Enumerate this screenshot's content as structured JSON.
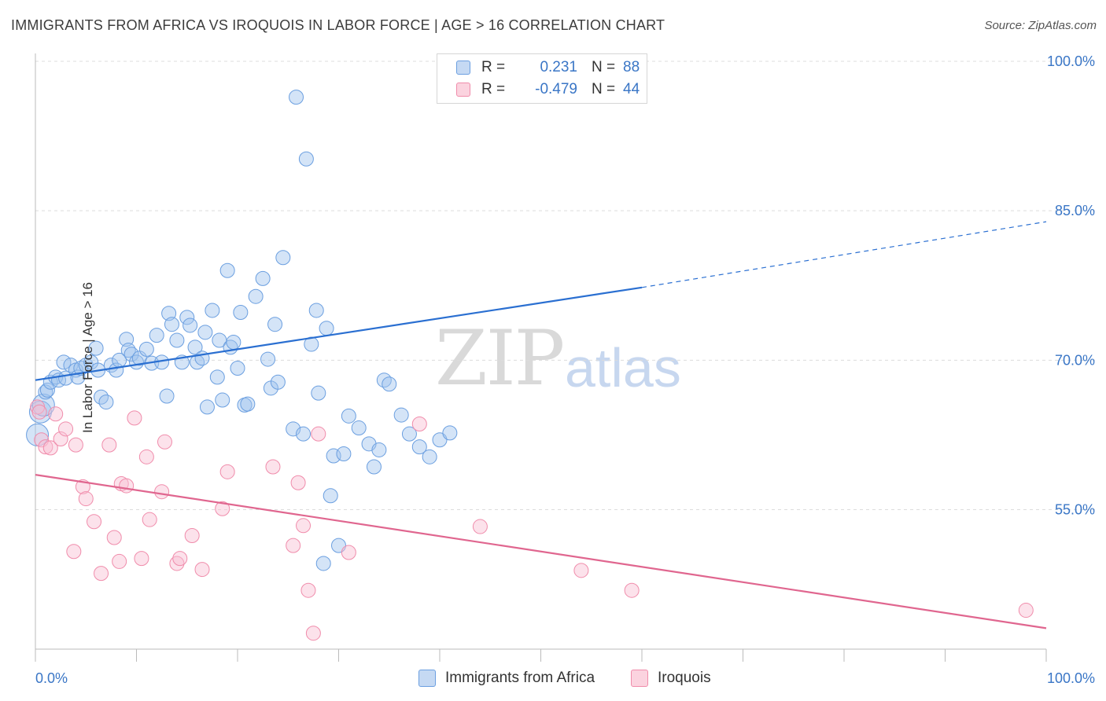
{
  "title": "IMMIGRANTS FROM AFRICA VS IROQUOIS IN LABOR FORCE | AGE > 16 CORRELATION CHART",
  "source": "Source: ZipAtlas.com",
  "watermark": {
    "zip": "ZIP",
    "atlas": "atlas"
  },
  "legend": {
    "r_label": "R =",
    "n_label": "N =",
    "series1": {
      "r": "0.231",
      "n": "88"
    },
    "series2": {
      "r": "-0.479",
      "n": "44"
    }
  },
  "bottom_legend": {
    "series1": "Immigrants from Africa",
    "series2": "Iroquois"
  },
  "colors": {
    "blue": "#6b9fe0",
    "blue_line": "#2a6fd1",
    "pink": "#f08cab",
    "pink_line": "#e0668f"
  },
  "chart_data": {
    "type": "scatter",
    "xlabel": "",
    "ylabel": "In Labor Force | Age > 16",
    "xlim": [
      0,
      100
    ],
    "ylim": [
      41,
      100
    ],
    "x_tick_labels": [
      "0.0%",
      "100.0%"
    ],
    "y_ticks": [
      55,
      70,
      85,
      100
    ],
    "y_tick_labels": [
      "55.0%",
      "70.0%",
      "85.0%",
      "100.0%"
    ],
    "grid": "horizontal dashed",
    "series": [
      {
        "name": "Immigrants from Africa",
        "r": 0.231,
        "n": 88,
        "trend": {
          "x0": 0,
          "y0": 68.0,
          "x1": 60,
          "y1": 77.3,
          "dashed_to": [
            100,
            83.9
          ]
        },
        "points": [
          [
            0.2,
            62.5
          ],
          [
            0.5,
            64.8
          ],
          [
            0.8,
            65.5
          ],
          [
            1.0,
            66.8
          ],
          [
            1.2,
            67.0
          ],
          [
            1.5,
            67.8
          ],
          [
            2.0,
            68.3
          ],
          [
            2.3,
            68.0
          ],
          [
            2.8,
            69.8
          ],
          [
            3.0,
            68.2
          ],
          [
            3.5,
            69.5
          ],
          [
            4.0,
            69.0
          ],
          [
            4.2,
            68.3
          ],
          [
            4.5,
            69.2
          ],
          [
            5.0,
            69.5
          ],
          [
            5.5,
            69.8
          ],
          [
            6.0,
            71.2
          ],
          [
            6.2,
            69.0
          ],
          [
            6.5,
            66.3
          ],
          [
            7.0,
            65.8
          ],
          [
            7.5,
            69.5
          ],
          [
            8.0,
            69.0
          ],
          [
            8.3,
            70.0
          ],
          [
            9.0,
            72.1
          ],
          [
            9.2,
            71.0
          ],
          [
            9.5,
            70.6
          ],
          [
            10.0,
            69.8
          ],
          [
            10.3,
            70.2
          ],
          [
            11.0,
            71.1
          ],
          [
            11.5,
            69.7
          ],
          [
            12.0,
            72.5
          ],
          [
            12.5,
            69.8
          ],
          [
            13.0,
            66.4
          ],
          [
            13.2,
            74.7
          ],
          [
            13.5,
            73.6
          ],
          [
            14.0,
            72.0
          ],
          [
            14.5,
            69.8
          ],
          [
            15.0,
            74.3
          ],
          [
            15.3,
            73.5
          ],
          [
            15.8,
            71.3
          ],
          [
            16.0,
            69.8
          ],
          [
            16.5,
            70.2
          ],
          [
            16.8,
            72.8
          ],
          [
            17.0,
            65.3
          ],
          [
            17.5,
            75.0
          ],
          [
            18.0,
            68.3
          ],
          [
            18.2,
            72.0
          ],
          [
            18.5,
            66.0
          ],
          [
            19.0,
            79.0
          ],
          [
            19.3,
            71.3
          ],
          [
            19.6,
            71.8
          ],
          [
            20.0,
            69.2
          ],
          [
            20.3,
            74.8
          ],
          [
            20.7,
            65.5
          ],
          [
            21.0,
            65.6
          ],
          [
            21.8,
            76.4
          ],
          [
            22.5,
            78.2
          ],
          [
            23.0,
            70.1
          ],
          [
            23.3,
            67.2
          ],
          [
            23.7,
            73.6
          ],
          [
            24.0,
            67.8
          ],
          [
            24.5,
            80.3
          ],
          [
            25.5,
            63.1
          ],
          [
            25.8,
            96.4
          ],
          [
            26.5,
            62.6
          ],
          [
            26.8,
            90.2
          ],
          [
            27.3,
            71.6
          ],
          [
            27.8,
            75.0
          ],
          [
            28.0,
            66.7
          ],
          [
            28.5,
            49.6
          ],
          [
            28.8,
            73.2
          ],
          [
            30.0,
            51.4
          ],
          [
            29.2,
            56.4
          ],
          [
            29.5,
            60.4
          ],
          [
            30.5,
            60.6
          ],
          [
            31.0,
            64.4
          ],
          [
            32.0,
            63.2
          ],
          [
            33.0,
            61.6
          ],
          [
            33.5,
            59.3
          ],
          [
            34.0,
            61.0
          ],
          [
            34.5,
            68.0
          ],
          [
            35.0,
            67.6
          ],
          [
            36.2,
            64.5
          ],
          [
            37.0,
            62.6
          ],
          [
            38.0,
            61.3
          ],
          [
            39.0,
            60.3
          ],
          [
            40.0,
            62.0
          ],
          [
            41.0,
            62.7
          ]
        ]
      },
      {
        "name": "Iroquois",
        "r": -0.479,
        "n": 44,
        "trend": {
          "x0": 0,
          "y0": 58.5,
          "x1": 100,
          "y1": 43.1
        },
        "points": [
          [
            0.2,
            65.3
          ],
          [
            0.4,
            64.8
          ],
          [
            0.6,
            62.0
          ],
          [
            1.0,
            61.3
          ],
          [
            1.5,
            61.2
          ],
          [
            2.0,
            64.6
          ],
          [
            2.5,
            62.1
          ],
          [
            3.0,
            63.1
          ],
          [
            4.0,
            61.5
          ],
          [
            4.7,
            57.3
          ],
          [
            5.0,
            56.1
          ],
          [
            5.8,
            53.8
          ],
          [
            3.8,
            50.8
          ],
          [
            6.5,
            48.6
          ],
          [
            7.3,
            61.5
          ],
          [
            7.8,
            52.2
          ],
          [
            8.5,
            57.6
          ],
          [
            8.3,
            49.8
          ],
          [
            9.0,
            57.4
          ],
          [
            9.8,
            64.2
          ],
          [
            10.5,
            50.1
          ],
          [
            11.0,
            60.3
          ],
          [
            11.3,
            54.0
          ],
          [
            12.5,
            56.8
          ],
          [
            12.8,
            61.8
          ],
          [
            14.0,
            49.6
          ],
          [
            14.3,
            50.1
          ],
          [
            15.5,
            52.4
          ],
          [
            16.5,
            49.0
          ],
          [
            18.5,
            55.1
          ],
          [
            19.0,
            58.8
          ],
          [
            23.5,
            59.3
          ],
          [
            25.5,
            51.4
          ],
          [
            26.0,
            57.7
          ],
          [
            26.5,
            53.4
          ],
          [
            27.0,
            46.9
          ],
          [
            27.5,
            42.6
          ],
          [
            28.0,
            62.6
          ],
          [
            31.0,
            50.7
          ],
          [
            38.0,
            63.6
          ],
          [
            44.0,
            53.3
          ],
          [
            54.0,
            48.9
          ],
          [
            59.0,
            46.9
          ],
          [
            98.0,
            44.9
          ]
        ]
      }
    ]
  }
}
